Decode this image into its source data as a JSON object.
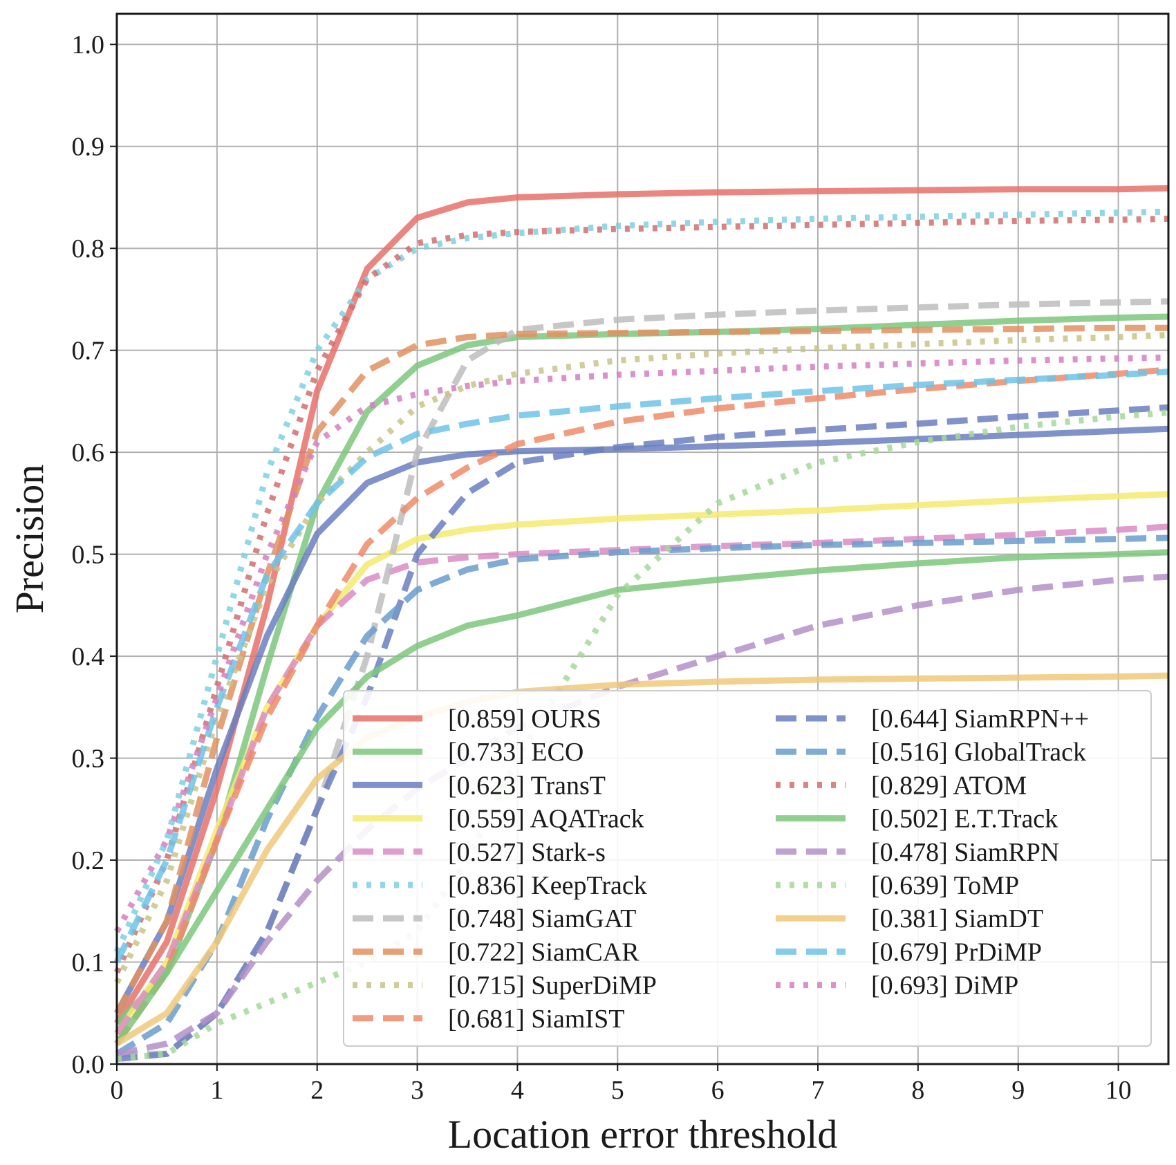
{
  "chart_data": {
    "type": "line",
    "xlabel": "Location error threshold",
    "ylabel": "Precision",
    "xlim": [
      0,
      10.5
    ],
    "ylim": [
      0,
      1.03
    ],
    "xticks": [
      "0",
      "1",
      "2",
      "3",
      "4",
      "5",
      "6",
      "7",
      "8",
      "9",
      "10"
    ],
    "yticks": [
      "0.0",
      "0.1",
      "0.2",
      "0.3",
      "0.4",
      "0.5",
      "0.6",
      "0.7",
      "0.8",
      "0.9",
      "1.0"
    ],
    "grid": true,
    "legend_position": "lower-right",
    "x": [
      0,
      0.5,
      1,
      1.5,
      2,
      2.5,
      3,
      3.5,
      4,
      5,
      6,
      7,
      8,
      9,
      10,
      10.5
    ],
    "series": [
      {
        "label": "[0.859] OURS",
        "color": "#e8706a",
        "style": "solid",
        "values": [
          0.04,
          0.12,
          0.27,
          0.45,
          0.66,
          0.78,
          0.83,
          0.845,
          0.85,
          0.853,
          0.855,
          0.856,
          0.857,
          0.858,
          0.858,
          0.859
        ]
      },
      {
        "label": "[0.733] ECO",
        "color": "#7dc77d",
        "style": "solid",
        "values": [
          0.04,
          0.09,
          0.22,
          0.39,
          0.55,
          0.64,
          0.685,
          0.705,
          0.713,
          0.716,
          0.718,
          0.721,
          0.725,
          0.729,
          0.732,
          0.733
        ]
      },
      {
        "label": "[0.623] TransT",
        "color": "#6a7fbf",
        "style": "solid",
        "values": [
          0.05,
          0.14,
          0.29,
          0.42,
          0.52,
          0.57,
          0.59,
          0.598,
          0.601,
          0.603,
          0.606,
          0.609,
          0.613,
          0.617,
          0.621,
          0.623
        ]
      },
      {
        "label": "[0.559] AQATrack",
        "color": "#f5ea6e",
        "style": "solid",
        "values": [
          0.03,
          0.1,
          0.23,
          0.35,
          0.43,
          0.49,
          0.515,
          0.524,
          0.529,
          0.535,
          0.539,
          0.543,
          0.548,
          0.553,
          0.557,
          0.559
        ]
      },
      {
        "label": "[0.527] Stark-s",
        "color": "#d98cc4",
        "style": "dashed",
        "values": [
          0.03,
          0.1,
          0.22,
          0.35,
          0.43,
          0.475,
          0.492,
          0.497,
          0.5,
          0.504,
          0.508,
          0.511,
          0.515,
          0.519,
          0.524,
          0.527
        ]
      },
      {
        "label": "[0.836] KeepTrack",
        "color": "#7dd0e3",
        "style": "dotted",
        "values": [
          0.11,
          0.22,
          0.4,
          0.58,
          0.7,
          0.77,
          0.8,
          0.81,
          0.815,
          0.822,
          0.826,
          0.829,
          0.831,
          0.833,
          0.835,
          0.836
        ]
      },
      {
        "label": "[0.748] SiamGAT",
        "color": "#bdbdbd",
        "style": "dashed",
        "values": [
          0.01,
          0.01,
          0.05,
          0.13,
          0.25,
          0.4,
          0.6,
          0.69,
          0.72,
          0.73,
          0.735,
          0.739,
          0.742,
          0.745,
          0.747,
          0.748
        ]
      },
      {
        "label": "[0.722] SiamCAR",
        "color": "#e09060",
        "style": "dashed",
        "values": [
          0.05,
          0.14,
          0.32,
          0.48,
          0.62,
          0.68,
          0.705,
          0.713,
          0.716,
          0.717,
          0.718,
          0.719,
          0.72,
          0.721,
          0.722,
          0.722
        ]
      },
      {
        "label": "[0.715] SuperDiMP",
        "color": "#c8c48a",
        "style": "dotted",
        "values": [
          0.08,
          0.18,
          0.34,
          0.47,
          0.55,
          0.6,
          0.645,
          0.665,
          0.677,
          0.69,
          0.697,
          0.702,
          0.706,
          0.71,
          0.713,
          0.715
        ]
      },
      {
        "label": "[0.681] SiamIST",
        "color": "#ee8a68",
        "style": "dashed",
        "values": [
          0.02,
          0.09,
          0.22,
          0.34,
          0.43,
          0.51,
          0.555,
          0.585,
          0.608,
          0.63,
          0.643,
          0.653,
          0.662,
          0.67,
          0.677,
          0.681
        ]
      },
      {
        "label": "[0.644] SiamRPN++",
        "color": "#6a7fbf",
        "style": "dashed",
        "values": [
          0.005,
          0.01,
          0.05,
          0.13,
          0.25,
          0.36,
          0.5,
          0.56,
          0.59,
          0.605,
          0.615,
          0.622,
          0.628,
          0.635,
          0.641,
          0.644
        ]
      },
      {
        "label": "[0.516] GlobalTrack",
        "color": "#6a9ccc",
        "style": "dashed",
        "values": [
          0.01,
          0.04,
          0.12,
          0.24,
          0.34,
          0.42,
          0.465,
          0.485,
          0.495,
          0.502,
          0.506,
          0.509,
          0.511,
          0.513,
          0.515,
          0.516
        ]
      },
      {
        "label": "[0.829] ATOM",
        "color": "#d16e6e",
        "style": "dotted",
        "values": [
          0.09,
          0.2,
          0.37,
          0.54,
          0.68,
          0.77,
          0.805,
          0.813,
          0.816,
          0.819,
          0.821,
          0.823,
          0.825,
          0.827,
          0.828,
          0.829
        ]
      },
      {
        "label": "[0.502] E.T.Track",
        "color": "#7dc77d",
        "style": "solid",
        "values": [
          0.02,
          0.09,
          0.17,
          0.25,
          0.33,
          0.38,
          0.41,
          0.43,
          0.44,
          0.465,
          0.475,
          0.484,
          0.491,
          0.497,
          0.5,
          0.502
        ]
      },
      {
        "label": "[0.478] SiamRPN",
        "color": "#b390c9",
        "style": "dashed",
        "values": [
          0.01,
          0.02,
          0.05,
          0.12,
          0.18,
          0.23,
          0.27,
          0.3,
          0.33,
          0.37,
          0.4,
          0.43,
          0.45,
          0.465,
          0.475,
          0.478
        ]
      },
      {
        "label": "[0.639] ToMP",
        "color": "#a6d89a",
        "style": "dotted",
        "values": [
          0.005,
          0.01,
          0.04,
          0.06,
          0.08,
          0.1,
          0.13,
          0.2,
          0.3,
          0.46,
          0.55,
          0.59,
          0.61,
          0.625,
          0.635,
          0.639
        ]
      },
      {
        "label": "[0.381] SiamDT",
        "color": "#f0c87a",
        "style": "solid",
        "values": [
          0.02,
          0.05,
          0.12,
          0.21,
          0.28,
          0.32,
          0.34,
          0.355,
          0.365,
          0.372,
          0.375,
          0.377,
          0.378,
          0.379,
          0.38,
          0.381
        ]
      },
      {
        "label": "[0.679] PrDiMP",
        "color": "#6fc3e8",
        "style": "dashed",
        "values": [
          0.1,
          0.2,
          0.35,
          0.48,
          0.55,
          0.595,
          0.618,
          0.628,
          0.636,
          0.645,
          0.653,
          0.66,
          0.666,
          0.671,
          0.676,
          0.679
        ]
      },
      {
        "label": "[0.693] DiMP",
        "color": "#d67fc0",
        "style": "dotted",
        "values": [
          0.13,
          0.22,
          0.36,
          0.5,
          0.61,
          0.645,
          0.657,
          0.665,
          0.67,
          0.676,
          0.68,
          0.684,
          0.687,
          0.69,
          0.692,
          0.693
        ]
      }
    ]
  }
}
